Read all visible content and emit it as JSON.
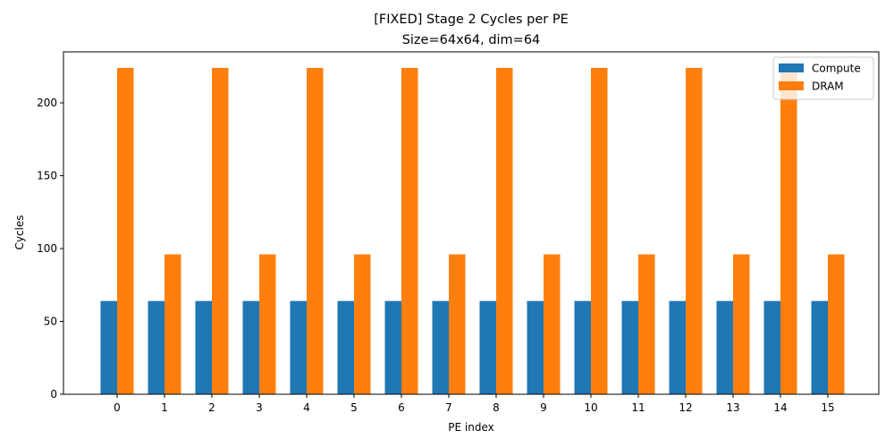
{
  "chart_data": {
    "type": "bar",
    "title": "[FIXED] Stage 2 Cycles per PE",
    "subtitle": "Size=64x64, dim=64",
    "xlabel": "PE index",
    "ylabel": "Cycles",
    "ylim": [
      0,
      235
    ],
    "yticks": [
      0,
      50,
      100,
      150,
      200
    ],
    "grid": false,
    "legend_position": "top-right",
    "categories": [
      "0",
      "1",
      "2",
      "3",
      "4",
      "5",
      "6",
      "7",
      "8",
      "9",
      "10",
      "11",
      "12",
      "13",
      "14",
      "15"
    ],
    "series": [
      {
        "name": "Compute",
        "color": "#1f77b4",
        "values": [
          64,
          64,
          64,
          64,
          64,
          64,
          64,
          64,
          64,
          64,
          64,
          64,
          64,
          64,
          64,
          64
        ]
      },
      {
        "name": "DRAM",
        "color": "#ff7f0e",
        "values": [
          224,
          96,
          224,
          96,
          224,
          96,
          224,
          96,
          224,
          96,
          224,
          96,
          224,
          96,
          224,
          96
        ]
      }
    ]
  }
}
